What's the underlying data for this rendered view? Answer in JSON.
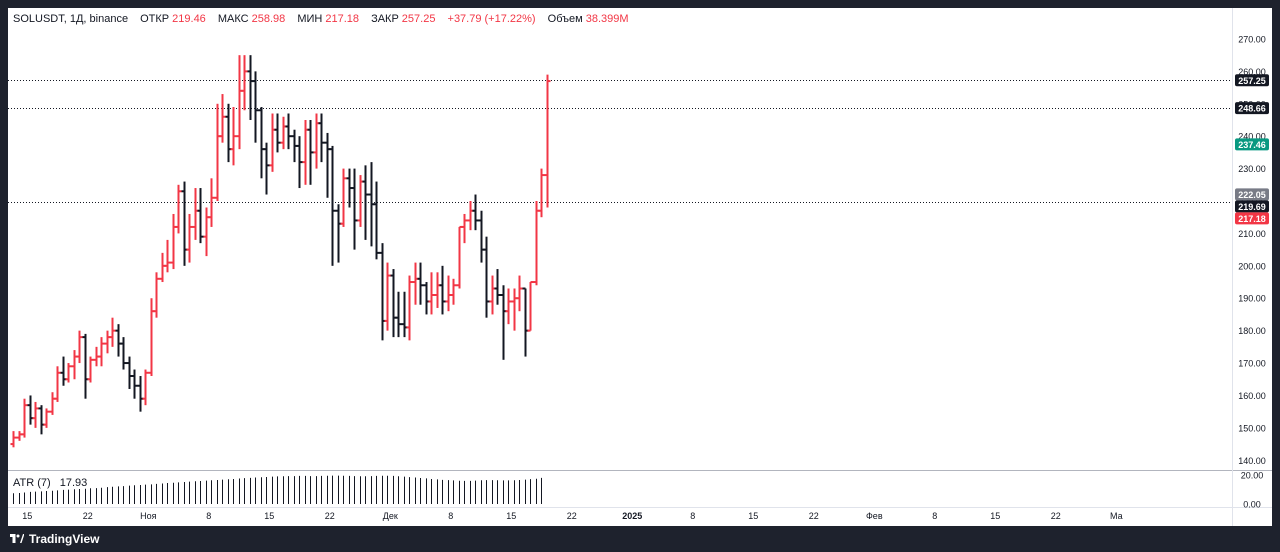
{
  "header": {
    "symbol": "SOLUSDT, 1Д, binance",
    "open_label": "ОТКР",
    "open_value": "219.46",
    "high_label": "МАКС",
    "high_value": "258.98",
    "low_label": "МИН",
    "low_value": "217.18",
    "close_label": "ЗАКР",
    "close_value": "257.25",
    "change_value": "+37.79 (+17.22%)",
    "volume_label": "Объем",
    "volume_value": "38.399M"
  },
  "atr_legend": {
    "label": "ATR (7)",
    "value": "17.93"
  },
  "brand": "TradingView",
  "colors": {
    "up": "#f23645",
    "down": "#131722",
    "background": "#ffffff",
    "frame": "#1e222d",
    "axis_text": "#131722",
    "label_close": "#131722",
    "label_green": "#089981",
    "label_gray": "#787b86"
  },
  "chart_data": {
    "type": "ohlc",
    "y_axis": {
      "range": [
        137,
        274
      ],
      "ticks": [
        "270.00",
        "260.00",
        "250.00",
        "240.00",
        "230.00",
        "220.00",
        "210.00",
        "200.00",
        "190.00",
        "180.00",
        "170.00",
        "160.00",
        "150.00",
        "140.00"
      ],
      "tick_values": [
        270,
        260,
        250,
        240,
        230,
        220,
        210,
        200,
        190,
        180,
        170,
        160,
        150,
        140
      ]
    },
    "x_axis": {
      "labels": [
        "15",
        "22",
        "Ноя",
        "8",
        "15",
        "22",
        "Дек",
        "8",
        "15",
        "22",
        "2025",
        "8",
        "15",
        "22",
        "Фев",
        "8",
        "15",
        "22",
        "Ма"
      ],
      "label_bars": [
        2.6,
        13.6,
        24.6,
        35.6,
        46.6,
        57.6,
        68.6,
        79.6,
        90.6,
        101.6,
        112.6,
        123.6,
        134.6,
        145.6,
        156.6,
        167.6,
        178.6,
        189.6,
        200.6
      ]
    },
    "price_labels": [
      {
        "text": "257.25",
        "value": 257.25,
        "color": "#131722"
      },
      {
        "text": "248.66",
        "value": 248.66,
        "color": "#131722"
      },
      {
        "text": "237.46",
        "value": 237.46,
        "color": "#089981"
      },
      {
        "text": "222.05",
        "value": 222.05,
        "color": "#787b86"
      },
      {
        "text": "219.69",
        "value": 219.69,
        "color": "#131722"
      },
      {
        "text": "217.18",
        "value": 217.18,
        "color": "#f23645"
      }
    ],
    "ref_lines": [
      257.25,
      248.66,
      219.69
    ],
    "bars": [
      [
        145,
        149,
        144,
        147
      ],
      [
        147,
        149,
        146,
        148
      ],
      [
        148,
        159,
        147,
        157
      ],
      [
        157,
        160,
        151,
        153
      ],
      [
        153,
        158,
        150,
        156
      ],
      [
        156,
        157,
        148,
        151
      ],
      [
        151,
        156,
        150,
        155
      ],
      [
        155,
        161,
        154,
        159
      ],
      [
        159,
        169,
        158,
        167
      ],
      [
        167,
        172,
        163,
        165
      ],
      [
        165,
        170,
        164,
        169
      ],
      [
        169,
        174,
        165,
        172
      ],
      [
        172,
        180,
        170,
        178
      ],
      [
        178,
        179,
        159,
        165
      ],
      [
        165,
        172,
        164,
        171
      ],
      [
        171,
        175,
        169,
        172
      ],
      [
        172,
        178,
        169,
        176
      ],
      [
        176,
        180,
        173,
        178
      ],
      [
        178,
        184,
        175,
        180
      ],
      [
        180,
        182,
        172,
        176
      ],
      [
        176,
        178,
        168,
        170
      ],
      [
        170,
        172,
        162,
        166
      ],
      [
        166,
        168,
        159,
        163
      ],
      [
        163,
        166,
        155,
        159
      ],
      [
        159,
        168,
        157,
        167
      ],
      [
        167,
        190,
        166,
        186
      ],
      [
        186,
        198,
        184,
        196
      ],
      [
        196,
        204,
        195,
        200
      ],
      [
        200,
        208,
        198,
        201
      ],
      [
        201,
        216,
        199,
        212
      ],
      [
        212,
        225,
        210,
        223
      ],
      [
        223,
        226,
        200,
        205
      ],
      [
        205,
        216,
        201,
        212
      ],
      [
        212,
        224,
        208,
        217
      ],
      [
        217,
        224,
        207,
        209
      ],
      [
        209,
        218,
        203,
        215
      ],
      [
        215,
        227,
        212,
        221
      ],
      [
        221,
        250,
        220,
        240
      ],
      [
        240,
        253,
        238,
        246
      ],
      [
        246,
        250,
        232,
        236
      ],
      [
        236,
        249,
        231,
        240
      ],
      [
        240,
        265,
        236,
        254
      ],
      [
        254,
        265,
        248,
        260
      ],
      [
        260,
        265,
        245,
        257
      ],
      [
        257,
        260,
        238,
        248
      ],
      [
        248,
        249,
        227,
        236
      ],
      [
        236,
        238,
        222,
        231
      ],
      [
        231,
        247,
        229,
        242
      ],
      [
        242,
        247,
        235,
        238
      ],
      [
        238,
        246,
        236,
        243
      ],
      [
        243,
        247,
        236,
        240
      ],
      [
        240,
        242,
        232,
        237
      ],
      [
        237,
        240,
        224,
        232
      ],
      [
        232,
        245,
        225,
        242
      ],
      [
        242,
        245,
        225,
        235
      ],
      [
        235,
        247,
        230,
        244
      ],
      [
        244,
        247,
        232,
        238
      ],
      [
        238,
        241,
        221,
        236
      ],
      [
        236,
        237,
        200,
        217
      ],
      [
        217,
        219,
        201,
        213
      ],
      [
        213,
        230,
        212,
        227
      ],
      [
        227,
        230,
        218,
        224
      ],
      [
        224,
        230,
        205,
        214
      ],
      [
        214,
        228,
        212,
        226
      ],
      [
        226,
        231,
        208,
        222
      ],
      [
        222,
        232,
        206,
        219
      ],
      [
        219,
        226,
        202,
        204
      ],
      [
        204,
        207,
        177,
        183
      ],
      [
        183,
        201,
        180,
        197
      ],
      [
        197,
        199,
        178,
        184
      ],
      [
        184,
        192,
        178,
        182
      ],
      [
        182,
        192,
        178,
        181
      ],
      [
        181,
        197,
        177,
        195
      ],
      [
        195,
        201,
        188,
        196
      ],
      [
        196,
        201,
        188,
        194
      ],
      [
        194,
        195,
        185,
        189
      ],
      [
        189,
        198,
        185,
        191
      ],
      [
        191,
        198,
        187,
        194
      ],
      [
        194,
        200,
        185,
        189
      ],
      [
        189,
        197,
        186,
        191
      ],
      [
        191,
        196,
        188,
        194
      ],
      [
        194,
        212,
        193,
        212
      ],
      [
        212,
        216,
        207,
        214
      ],
      [
        214,
        220,
        211,
        217
      ],
      [
        217,
        222,
        211,
        214
      ],
      [
        214,
        217,
        201,
        205
      ],
      [
        205,
        209,
        184,
        189
      ],
      [
        189,
        197,
        185,
        193
      ],
      [
        193,
        199,
        188,
        191
      ],
      [
        191,
        194,
        171,
        186
      ],
      [
        186,
        193,
        182,
        189
      ],
      [
        189,
        193,
        180,
        190
      ],
      [
        190,
        197,
        186,
        193
      ],
      [
        193,
        193,
        172,
        180
      ],
      [
        180,
        195,
        180,
        195
      ],
      [
        195,
        220,
        194,
        217
      ],
      [
        217,
        230,
        215,
        228
      ],
      [
        228,
        259,
        218,
        257
      ]
    ],
    "atr_values": [
      7.4,
      7.6,
      7.9,
      8.3,
      8.5,
      8.7,
      8.9,
      9.1,
      9.4,
      9.7,
      9.9,
      10.1,
      10.3,
      10.5,
      10.8,
      10.9,
      11.2,
      11.6,
      11.9,
      12.1,
      12.3,
      12.6,
      12.9,
      13.1,
      13.3,
      13.5,
      13.8,
      14.1,
      14.4,
      14.6,
      14.9,
      15.1,
      15.4,
      15.6,
      15.8,
      16.1,
      16.3,
      16.5,
      16.8,
      17.0,
      17.2,
      17.5,
      17.8,
      18.0,
      18.2,
      18.4,
      18.6,
      18.8,
      19.0,
      19.1,
      19.2,
      19.2,
      19.3,
      19.3,
      19.2,
      19.2,
      19.3,
      19.4,
      19.5,
      19.5,
      19.4,
      19.3,
      19.2,
      19.1,
      19.1,
      19.2,
      19.3,
      19.4,
      19.4,
      19.3,
      19.1,
      18.8,
      18.5,
      18.2,
      17.9,
      17.6,
      17.2,
      16.9,
      16.6,
      16.4,
      16.2,
      16.0,
      15.9,
      15.9,
      16.1,
      16.3,
      16.4,
      16.4,
      16.3,
      16.2,
      16.2,
      16.3,
      16.5,
      16.8,
      17.1,
      17.4,
      17.93
    ],
    "atr_axis": {
      "range": [
        0,
        22
      ],
      "ticks": [
        "20.00",
        "0.00"
      ],
      "tick_values": [
        20,
        0
      ]
    }
  }
}
